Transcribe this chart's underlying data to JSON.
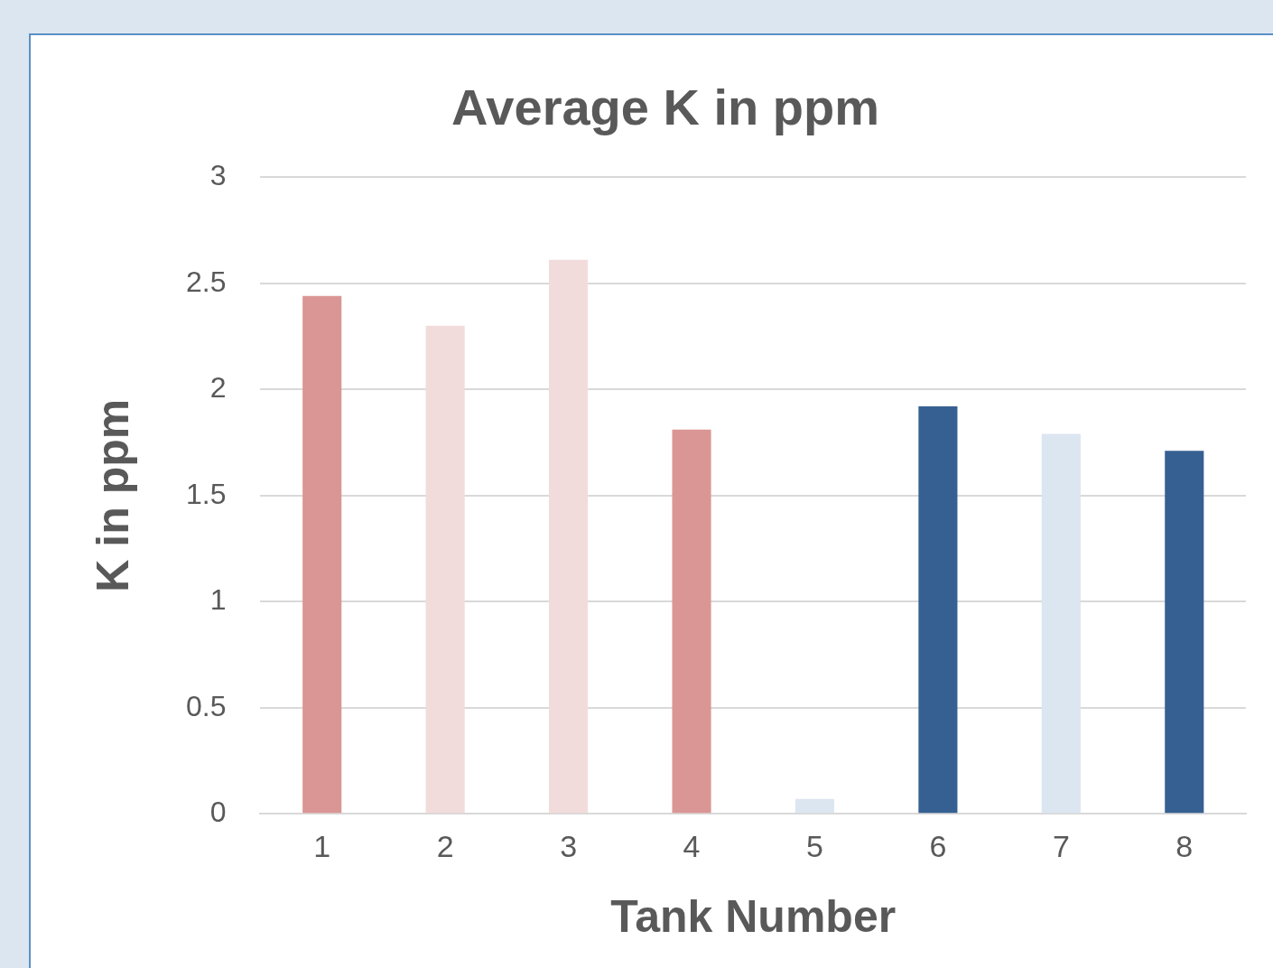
{
  "chart_data": {
    "type": "bar",
    "title": "Average K in ppm",
    "xlabel": "Tank Number",
    "ylabel": "K in ppm",
    "categories": [
      "1",
      "2",
      "3",
      "4",
      "5",
      "6",
      "7",
      "8"
    ],
    "values": [
      2.44,
      2.3,
      2.61,
      1.81,
      0.07,
      1.92,
      1.79,
      1.71
    ],
    "colors": [
      "#da9694",
      "#f2dcdb",
      "#f2dcdb",
      "#da9694",
      "#dce6f1",
      "#366092",
      "#dce6f1",
      "#366092"
    ],
    "ylim": [
      0,
      3
    ],
    "yticks": [
      0,
      0.5,
      1,
      1.5,
      2,
      2.5,
      3
    ],
    "grid": "y",
    "legend": false
  }
}
